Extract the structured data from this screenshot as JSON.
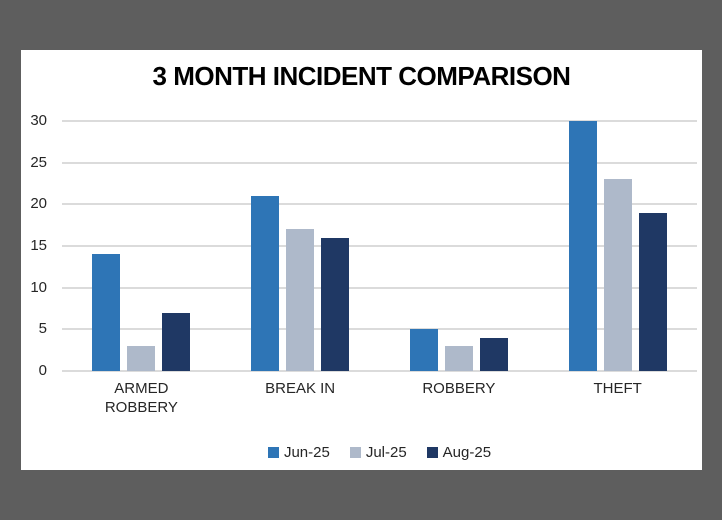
{
  "window": {
    "outer_background": "#5E5E5E",
    "card_background": "#FFFFFF",
    "gridline_color": "#DBDBDB",
    "text_color": "#262626"
  },
  "chart_data": {
    "type": "bar",
    "title": "3 MONTH INCIDENT COMPARISON",
    "categories": [
      "ARMED ROBBERY",
      "BREAK IN",
      "ROBBERY",
      "THEFT"
    ],
    "series": [
      {
        "name": "Jun-25",
        "color": "#2E75B6",
        "values": [
          14,
          21,
          5,
          30
        ]
      },
      {
        "name": "Jul-25",
        "color": "#AEB9CA",
        "values": [
          3,
          17,
          3,
          23
        ]
      },
      {
        "name": "Aug-25",
        "color": "#1F3864",
        "values": [
          7,
          16,
          4,
          19
        ]
      }
    ],
    "yticks": [
      0,
      5,
      10,
      15,
      20,
      25,
      30
    ],
    "ylim": [
      0,
      30
    ],
    "xlabel": "",
    "ylabel": "",
    "grid": "horizontal",
    "legend_position": "bottom"
  }
}
